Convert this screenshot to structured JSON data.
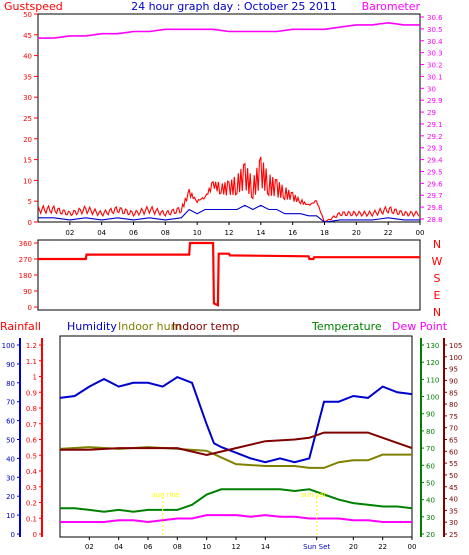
{
  "chart_data": [
    {
      "type": "line",
      "title": "24 hour graph day : October 25 2011",
      "x_ticks": [
        "02",
        "04",
        "06",
        "08",
        "10",
        "12",
        "14",
        "16",
        "18",
        "20",
        "22",
        "00"
      ],
      "left_axis": {
        "label": "Gustspeed",
        "color": "#ff0000",
        "ylim": [
          0,
          50
        ],
        "ticks": [
          "0",
          "5",
          "10",
          "15",
          "20",
          "25",
          "30",
          "35",
          "40",
          "45",
          "50"
        ]
      },
      "right_axis": {
        "label": "Barometer",
        "color": "#ff00ff",
        "ylim": [
          29.75,
          30.7
        ],
        "ticks": [
          "29.8",
          "29.9",
          "30",
          "30.1",
          "30.2",
          "30.3",
          "30.4",
          "30.5",
          "30.6",
          "30.7"
        ],
        "tick_labels": [
          "28.8",
          "29.8",
          "29.7",
          "29.6",
          "29.5",
          "29.4",
          "29.3",
          "29.2",
          "29.1",
          "29",
          "29.9",
          "30",
          "30.1",
          "30.2",
          "30.3",
          "30.4",
          "30.5",
          "30.6"
        ]
      },
      "series": [
        {
          "name": "Barometer",
          "axis": "right",
          "color": "#ff00ff",
          "x": [
            0,
            1,
            2,
            3,
            4,
            5,
            6,
            7,
            8,
            9,
            10,
            11,
            12,
            13,
            14,
            15,
            16,
            17,
            18,
            19,
            20,
            21,
            22,
            23,
            24
          ],
          "y": [
            30.59,
            30.59,
            30.6,
            30.6,
            30.61,
            30.61,
            30.62,
            30.62,
            30.63,
            30.63,
            30.63,
            30.63,
            30.62,
            30.62,
            30.62,
            30.62,
            30.63,
            30.63,
            30.63,
            30.64,
            30.65,
            30.65,
            30.66,
            30.65,
            30.65
          ]
        },
        {
          "name": "Gustspeed",
          "axis": "left",
          "color": "#ff0000",
          "style": "spiky",
          "x": [
            0,
            1,
            2,
            3,
            4,
            5,
            6,
            7,
            8,
            9,
            9.5,
            10,
            10.5,
            11,
            11.5,
            12,
            12.5,
            13,
            13.5,
            14,
            14.5,
            15,
            15.5,
            16,
            16.5,
            17,
            17.5,
            18,
            19,
            20,
            21,
            22,
            23,
            24
          ],
          "y": [
            3,
            3,
            2,
            3,
            2,
            3,
            2,
            3,
            2,
            3,
            7,
            5,
            6,
            9,
            8,
            8,
            9,
            11,
            8,
            12,
            9,
            8,
            7,
            6,
            5,
            4,
            5,
            0,
            2,
            2,
            2,
            3,
            2,
            2
          ]
        },
        {
          "name": "Windspeed",
          "axis": "left",
          "color": "#0000cc",
          "x": [
            0,
            1,
            2,
            3,
            4,
            5,
            6,
            7,
            8,
            9,
            9.5,
            10,
            10.5,
            11,
            11.5,
            12,
            12.5,
            13,
            13.5,
            14,
            14.5,
            15,
            15.5,
            16,
            16.5,
            17,
            17.5,
            18,
            19,
            20,
            21,
            22,
            23,
            24
          ],
          "y": [
            1,
            1,
            0.5,
            1,
            0.5,
            1,
            0.5,
            1,
            0.5,
            1,
            3,
            2,
            3,
            3,
            3,
            3,
            3,
            4,
            3,
            4,
            3,
            3,
            2,
            2,
            2,
            1.5,
            1.5,
            0,
            0.5,
            0.5,
            0.5,
            1,
            0.5,
            0.5
          ]
        }
      ]
    },
    {
      "type": "line",
      "x_ticks": [
        "02",
        "04",
        "06",
        "08",
        "10",
        "12",
        "14",
        "16",
        "18",
        "20",
        "22",
        "00"
      ],
      "left_axis": {
        "ylim": [
          0,
          360
        ],
        "ticks": [
          "0",
          "90",
          "180",
          "270",
          "360"
        ]
      },
      "right_labels": [
        "N",
        "W",
        "S",
        "E",
        "N"
      ],
      "series": [
        {
          "name": "Wind Direction",
          "color": "#ff0000",
          "x": [
            0,
            3,
            3.05,
            9.5,
            9.55,
            11,
            11.05,
            11.3,
            11.35,
            12,
            12.05,
            17,
            17.05,
            17.3,
            17.35,
            24
          ],
          "y": [
            270,
            270,
            295,
            295,
            360,
            360,
            20,
            10,
            300,
            300,
            290,
            285,
            270,
            270,
            280,
            280
          ]
        }
      ]
    },
    {
      "type": "line",
      "x_ticks": [
        "02",
        "04",
        "06",
        "08",
        "10",
        "12",
        "14",
        "Sun Set",
        "20",
        "22",
        "00"
      ],
      "legend": [
        "Rainfall",
        "Humidity",
        "Indoor hum",
        "Indoor temp",
        "Temperature",
        "Dew Point"
      ],
      "sun_rise_marker": "sun rise",
      "sun_set_marker": "sun set",
      "axes": {
        "rainfall": {
          "ylim": [
            0,
            1.2
          ],
          "ticks": [
            "0",
            "0.1",
            "0.2",
            "0.3",
            "0.4",
            "0.5",
            "0.6",
            "0.7",
            "0.8",
            "0.9",
            "1",
            "1.1",
            "1.2"
          ]
        },
        "humidity": {
          "ylim": [
            0,
            100
          ],
          "ticks": [
            "0",
            "10",
            "20",
            "30",
            "40",
            "50",
            "60",
            "70",
            "80",
            "90",
            "100"
          ]
        },
        "temperature": {
          "ylim": [
            20,
            130
          ],
          "ticks": [
            "20",
            "30",
            "40",
            "50",
            "60",
            "70",
            "80",
            "90",
            "100",
            "110",
            "120",
            "130"
          ]
        },
        "dew_point": {
          "ylim": [
            25,
            105
          ],
          "ticks": [
            "25",
            "30",
            "35",
            "40",
            "45",
            "50",
            "55",
            "60",
            "65",
            "70",
            "75",
            "80",
            "85",
            "90",
            "95",
            "100",
            "105"
          ]
        }
      },
      "series": [
        {
          "name": "Humidity",
          "axis": "humidity",
          "color": "#0000cc",
          "x": [
            0,
            1,
            2,
            3,
            4,
            5,
            6,
            7,
            8,
            9,
            10,
            10.5,
            11,
            12,
            13,
            14,
            15,
            16,
            17,
            18,
            19,
            20,
            21,
            22,
            23,
            24
          ],
          "y": [
            72,
            73,
            78,
            82,
            78,
            80,
            80,
            78,
            83,
            80,
            58,
            48,
            46,
            43,
            40,
            38,
            40,
            38,
            40,
            70,
            70,
            73,
            72,
            78,
            75,
            74
          ]
        },
        {
          "name": "Indoor hum",
          "axis": "humidity",
          "color": "#808000",
          "x": [
            0,
            2,
            4,
            6,
            8,
            10,
            12,
            14,
            16,
            17,
            18,
            19,
            20,
            21,
            22,
            23,
            24
          ],
          "y": [
            45,
            46,
            45,
            46,
            45,
            44,
            37,
            36,
            36,
            35,
            35,
            38,
            39,
            39,
            42,
            42,
            42
          ]
        },
        {
          "name": "Indoor temp",
          "axis": "temperature",
          "color": "#800000",
          "x": [
            0,
            2,
            4,
            6,
            8,
            10,
            12,
            14,
            16,
            17,
            18,
            19,
            20,
            21,
            22,
            23,
            24
          ],
          "y": [
            69,
            69,
            70,
            70,
            70,
            66,
            70,
            74,
            75,
            76,
            79,
            79,
            79,
            79,
            76,
            73,
            70
          ]
        },
        {
          "name": "Temperature",
          "axis": "temperature",
          "color": "#008000",
          "x": [
            0,
            1,
            2,
            3,
            4,
            5,
            6,
            7,
            8,
            9,
            10,
            11,
            12,
            13,
            14,
            15,
            16,
            17,
            18,
            19,
            20,
            21,
            22,
            23,
            24
          ],
          "y": [
            35,
            35,
            34,
            33,
            34,
            33,
            34,
            34,
            34,
            37,
            43,
            46,
            46,
            46,
            46,
            46,
            45,
            46,
            43,
            40,
            38,
            37,
            36,
            36,
            35
          ]
        },
        {
          "name": "Dew Point",
          "axis": "temperature",
          "color": "#ff00ff",
          "x": [
            0,
            1,
            2,
            3,
            4,
            5,
            6,
            7,
            8,
            9,
            10,
            11,
            12,
            13,
            14,
            15,
            16,
            17,
            18,
            19,
            20,
            21,
            22,
            23,
            24
          ],
          "y": [
            27,
            27,
            27,
            27,
            28,
            28,
            27,
            28,
            29,
            29,
            31,
            31,
            31,
            30,
            31,
            30,
            30,
            29,
            29,
            29,
            28,
            28,
            27,
            27,
            27
          ]
        }
      ]
    }
  ]
}
